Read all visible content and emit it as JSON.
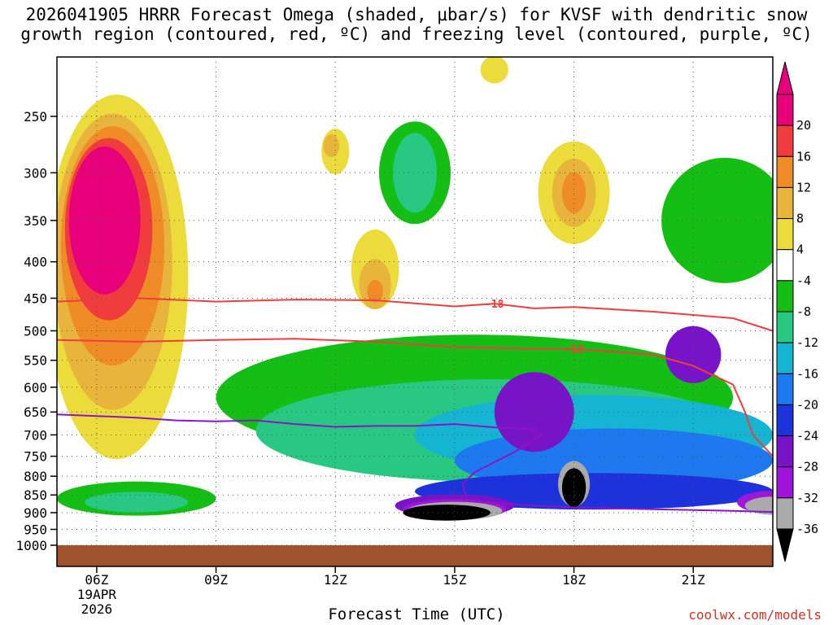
{
  "title_line1": "2026041905 HRRR Forecast Omega (shaded, μbar/s) for KVSF with dendritic snow",
  "title_line2": "growth region (contoured, red, ºC) and freezing level (contoured, purple, ºC)",
  "xlabel": "Forecast Time (UTC)",
  "credit": "coolwx.com/models",
  "chart_data": {
    "type": "heatmap",
    "title": "2026041905 HRRR Forecast Omega (shaded, μbar/s) for KVSF with dendritic snow growth region (contoured, red, ºC) and freezing level (contoured, purple, ºC)",
    "xlabel": "Forecast Time (UTC)",
    "ylabel": "",
    "y_scale": "log-pressure",
    "ylim_hPa": [
      1000,
      200
    ],
    "xlim_hours_utc": [
      5,
      23
    ],
    "y_ticks": [
      {
        "v": 250,
        "label": "250"
      },
      {
        "v": 300,
        "label": "300"
      },
      {
        "v": 350,
        "label": "350"
      },
      {
        "v": 400,
        "label": "400"
      },
      {
        "v": 450,
        "label": "450"
      },
      {
        "v": 500,
        "label": "500"
      },
      {
        "v": 550,
        "label": "550"
      },
      {
        "v": 600,
        "label": "600"
      },
      {
        "v": 650,
        "label": "650"
      },
      {
        "v": 700,
        "label": "700"
      },
      {
        "v": 750,
        "label": "750"
      },
      {
        "v": 800,
        "label": "800"
      },
      {
        "v": 850,
        "label": "850"
      },
      {
        "v": 900,
        "label": "900"
      },
      {
        "v": 950,
        "label": "950"
      },
      {
        "v": 1000,
        "label": "1000"
      }
    ],
    "x_ticks": [
      {
        "v": 6,
        "label": "06Z",
        "sub1": "19APR",
        "sub2": "2026"
      },
      {
        "v": 9,
        "label": "09Z"
      },
      {
        "v": 12,
        "label": "12Z"
      },
      {
        "v": 15,
        "label": "15Z"
      },
      {
        "v": 18,
        "label": "18Z"
      },
      {
        "v": 21,
        "label": "21Z"
      }
    ],
    "grid": true,
    "legend": "right colorbar",
    "colorbar": {
      "levels": [
        {
          "label": "20",
          "color": "#e8007a"
        },
        {
          "label": "16",
          "color": "#f03c3c"
        },
        {
          "label": "12",
          "color": "#f08c28"
        },
        {
          "label": "8",
          "color": "#e8b43c"
        },
        {
          "label": "4",
          "color": "#ebdc3c"
        },
        {
          "label": "-4",
          "color": "#ffffff"
        },
        {
          "label": "-8",
          "color": "#14be14"
        },
        {
          "label": "-12",
          "color": "#28c882"
        },
        {
          "label": "-16",
          "color": "#14b4d2"
        },
        {
          "label": "-20",
          "color": "#1e78f0"
        },
        {
          "label": "-24",
          "color": "#1e32dc"
        },
        {
          "label": "-28",
          "color": "#7814c8"
        },
        {
          "label": "-32",
          "color": "#a014dc"
        },
        {
          "label": "-36",
          "color": "#aaaaaa"
        }
      ],
      "top_arrow_color": "#e8007a",
      "bottom_arrow_color": "#000000",
      "bottom_band_color": "#000000"
    },
    "isotherms_dgz": [
      {
        "label": "-18",
        "color": "#f03c3c",
        "points": [
          [
            5,
            455
          ],
          [
            7,
            450
          ],
          [
            9,
            455
          ],
          [
            11,
            452
          ],
          [
            13,
            453
          ],
          [
            15,
            462
          ],
          [
            16,
            458
          ],
          [
            17,
            465
          ],
          [
            18,
            463
          ],
          [
            20,
            470
          ],
          [
            22,
            480
          ],
          [
            23,
            500
          ]
        ]
      },
      {
        "label": "-12",
        "color": "#f03c3c",
        "points": [
          [
            5,
            515
          ],
          [
            7,
            518
          ],
          [
            9,
            515
          ],
          [
            11,
            513
          ],
          [
            13,
            518
          ],
          [
            15,
            527
          ],
          [
            17,
            530
          ],
          [
            18,
            530
          ],
          [
            19,
            535
          ],
          [
            20,
            540
          ],
          [
            21,
            560
          ],
          [
            22,
            595
          ],
          [
            22.3,
            650
          ],
          [
            22.5,
            700
          ],
          [
            23,
            750
          ]
        ]
      }
    ],
    "freezing_level": {
      "label": "0",
      "color": "#8c14c8",
      "points": [
        [
          5,
          655
        ],
        [
          7,
          662
        ],
        [
          8,
          668
        ],
        [
          9,
          670
        ],
        [
          10,
          668
        ],
        [
          11,
          676
        ],
        [
          12,
          682
        ],
        [
          13,
          680
        ],
        [
          14,
          680
        ],
        [
          15,
          676
        ],
        [
          16,
          683
        ],
        [
          17,
          688
        ],
        [
          17.2,
          700
        ],
        [
          16.5,
          740
        ],
        [
          15.5,
          790
        ],
        [
          15.2,
          820
        ],
        [
          15.3,
          860
        ],
        [
          16,
          872
        ],
        [
          17,
          880
        ],
        [
          18,
          885
        ],
        [
          20,
          890
        ],
        [
          22,
          895
        ],
        [
          23,
          898
        ]
      ]
    },
    "omega_regions": [
      {
        "level": 4,
        "color": "#ebdc3c",
        "center": [
          6.5,
          420
        ],
        "radius_h": [
          1.8,
          1.6
        ]
      },
      {
        "level": 8,
        "color": "#e8b43c",
        "center": [
          6.4,
          400
        ],
        "radius_h": [
          1.5,
          1.3
        ]
      },
      {
        "level": 12,
        "color": "#f08c28",
        "center": [
          6.4,
          380
        ],
        "radius_h": [
          1.3,
          1.05
        ]
      },
      {
        "level": 16,
        "color": "#f03c3c",
        "center": [
          6.3,
          360
        ],
        "radius_h": [
          1.1,
          0.8
        ]
      },
      {
        "level": 20,
        "color": "#e8007a",
        "center": [
          6.2,
          350
        ],
        "radius_h": [
          0.9,
          0.65
        ]
      },
      {
        "level": 4,
        "color": "#ebdc3c",
        "center": [
          12.0,
          280
        ],
        "radius_h": [
          0.35,
          0.2
        ]
      },
      {
        "level": 8,
        "color": "#e8b43c",
        "center": [
          11.9,
          275
        ],
        "radius_h": [
          0.2,
          0.1
        ]
      },
      {
        "level": 4,
        "color": "#ebdc3c",
        "center": [
          13.0,
          410
        ],
        "radius_h": [
          0.6,
          0.35
        ]
      },
      {
        "level": 8,
        "color": "#e8b43c",
        "center": [
          13.0,
          430
        ],
        "radius_h": [
          0.4,
          0.22
        ]
      },
      {
        "level": 12,
        "color": "#f08c28",
        "center": [
          13.0,
          440
        ],
        "radius_h": [
          0.2,
          0.1
        ]
      },
      {
        "level": 4,
        "color": "#ebdc3c",
        "center": [
          18.0,
          320
        ],
        "radius_h": [
          0.9,
          0.45
        ]
      },
      {
        "level": 8,
        "color": "#e8b43c",
        "center": [
          18.0,
          320
        ],
        "radius_h": [
          0.55,
          0.3
        ]
      },
      {
        "level": 12,
        "color": "#f08c28",
        "center": [
          18.0,
          320
        ],
        "radius_h": [
          0.3,
          0.18
        ]
      },
      {
        "level": 4,
        "color": "#ebdc3c",
        "center": [
          16.0,
          215
        ],
        "radius_h": [
          0.35,
          0.12
        ]
      },
      {
        "level": -8,
        "color": "#14be14",
        "center": [
          15.5,
          620
        ],
        "radius_h": [
          6.5,
          0.55
        ]
      },
      {
        "level": -12,
        "color": "#28c882",
        "center": [
          16.0,
          690
        ],
        "radius_h": [
          6.0,
          0.45
        ]
      },
      {
        "level": -8,
        "color": "#14be14",
        "center": [
          14.0,
          300
        ],
        "radius_h": [
          0.9,
          0.45
        ]
      },
      {
        "level": -12,
        "color": "#28c882",
        "center": [
          14.0,
          300
        ],
        "radius_h": [
          0.55,
          0.35
        ]
      },
      {
        "level": -8,
        "color": "#14be14",
        "center": [
          21.8,
          350
        ],
        "radius_h": [
          1.6,
          0.55
        ]
      },
      {
        "level": -8,
        "color": "#14be14",
        "center": [
          7.0,
          860
        ],
        "radius_h": [
          2.0,
          0.15
        ]
      },
      {
        "level": -12,
        "color": "#28c882",
        "center": [
          7.0,
          870
        ],
        "radius_h": [
          1.3,
          0.09
        ]
      },
      {
        "level": -16,
        "color": "#14b4d2",
        "center": [
          18.5,
          700
        ],
        "radius_h": [
          4.5,
          0.35
        ]
      },
      {
        "level": -20,
        "color": "#1e78f0",
        "center": [
          19.0,
          760
        ],
        "radius_h": [
          4.0,
          0.28
        ]
      },
      {
        "level": -24,
        "color": "#1e32dc",
        "center": [
          18.5,
          840
        ],
        "radius_h": [
          4.5,
          0.16
        ]
      },
      {
        "level": -28,
        "color": "#7814c8",
        "center": [
          17.0,
          650
        ],
        "radius_h": [
          1.0,
          0.35
        ]
      },
      {
        "level": -28,
        "color": "#7814c8",
        "center": [
          15.0,
          880
        ],
        "radius_h": [
          1.5,
          0.1
        ]
      },
      {
        "level": -32,
        "color": "#a014dc",
        "center": [
          15.0,
          890
        ],
        "radius_h": [
          1.3,
          0.09
        ]
      },
      {
        "level": -36,
        "color": "#aaaaaa",
        "center": [
          15.0,
          895
        ],
        "radius_h": [
          1.2,
          0.08
        ]
      },
      {
        "level": -36,
        "color": "#000000",
        "center": [
          14.8,
          900
        ],
        "radius_h": [
          1.1,
          0.07
        ]
      },
      {
        "level": -36,
        "color": "#aaaaaa",
        "center": [
          18.0,
          820
        ],
        "radius_h": [
          0.4,
          0.2
        ]
      },
      {
        "level": -36,
        "color": "#000000",
        "center": [
          18.0,
          830
        ],
        "radius_h": [
          0.3,
          0.17
        ]
      },
      {
        "level": -28,
        "color": "#7814c8",
        "center": [
          21.0,
          540
        ],
        "radius_h": [
          0.7,
          0.25
        ]
      },
      {
        "level": -32,
        "color": "#a014dc",
        "center": [
          23.0,
          870
        ],
        "radius_h": [
          0.9,
          0.1
        ]
      },
      {
        "level": -36,
        "color": "#aaaaaa",
        "center": [
          23.0,
          880
        ],
        "radius_h": [
          0.7,
          0.08
        ]
      }
    ]
  }
}
